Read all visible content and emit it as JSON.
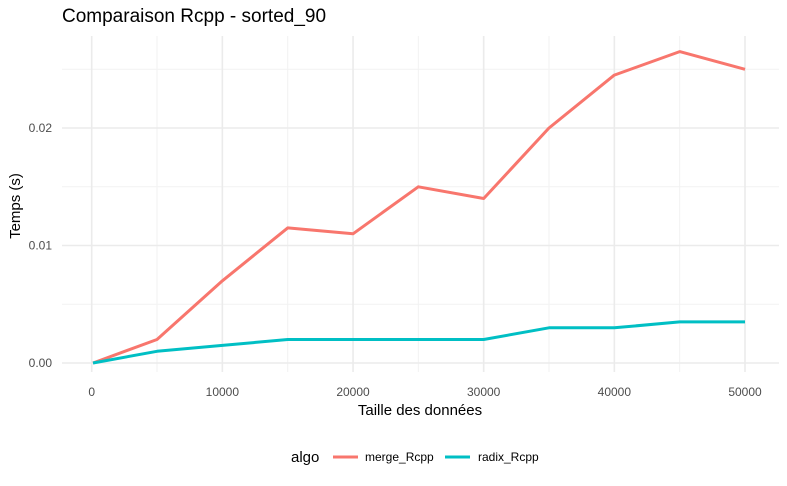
{
  "chart_data": {
    "type": "line",
    "title": "Comparaison Rcpp - sorted_90",
    "xlabel": "Taille des données",
    "ylabel": "Temps (s)",
    "x": [
      100,
      5000,
      10000,
      15000,
      20000,
      25000,
      30000,
      35000,
      40000,
      45000,
      50000
    ],
    "series": [
      {
        "name": "merge_Rcpp",
        "color": "#F8766D",
        "values": [
          0.0,
          0.002,
          0.007,
          0.0115,
          0.011,
          0.015,
          0.014,
          0.02,
          0.0245,
          0.0265,
          0.025
        ]
      },
      {
        "name": "radix_Rcpp",
        "color": "#00BFC4",
        "values": [
          0.0,
          0.001,
          0.0015,
          0.002,
          0.002,
          0.002,
          0.002,
          0.003,
          0.003,
          0.0035,
          0.0035
        ]
      }
    ],
    "xlim": [
      100,
      50000
    ],
    "ylim": [
      -0.0013,
      0.0278
    ],
    "x_ticks": [
      0,
      10000,
      20000,
      30000,
      40000,
      50000
    ],
    "x_tick_labels": [
      "0",
      "10000",
      "20000",
      "30000",
      "40000",
      "50000"
    ],
    "x_minor_ticks": [
      5000,
      15000,
      25000,
      35000,
      45000
    ],
    "y_ticks": [
      0,
      0.01,
      0.02
    ],
    "y_tick_labels": [
      "0.00",
      "0.01",
      "0.02"
    ],
    "y_minor_ticks": [
      0.005,
      0.015,
      0.025
    ],
    "grid": true,
    "legend": {
      "title": "algo",
      "position": "bottom"
    }
  }
}
